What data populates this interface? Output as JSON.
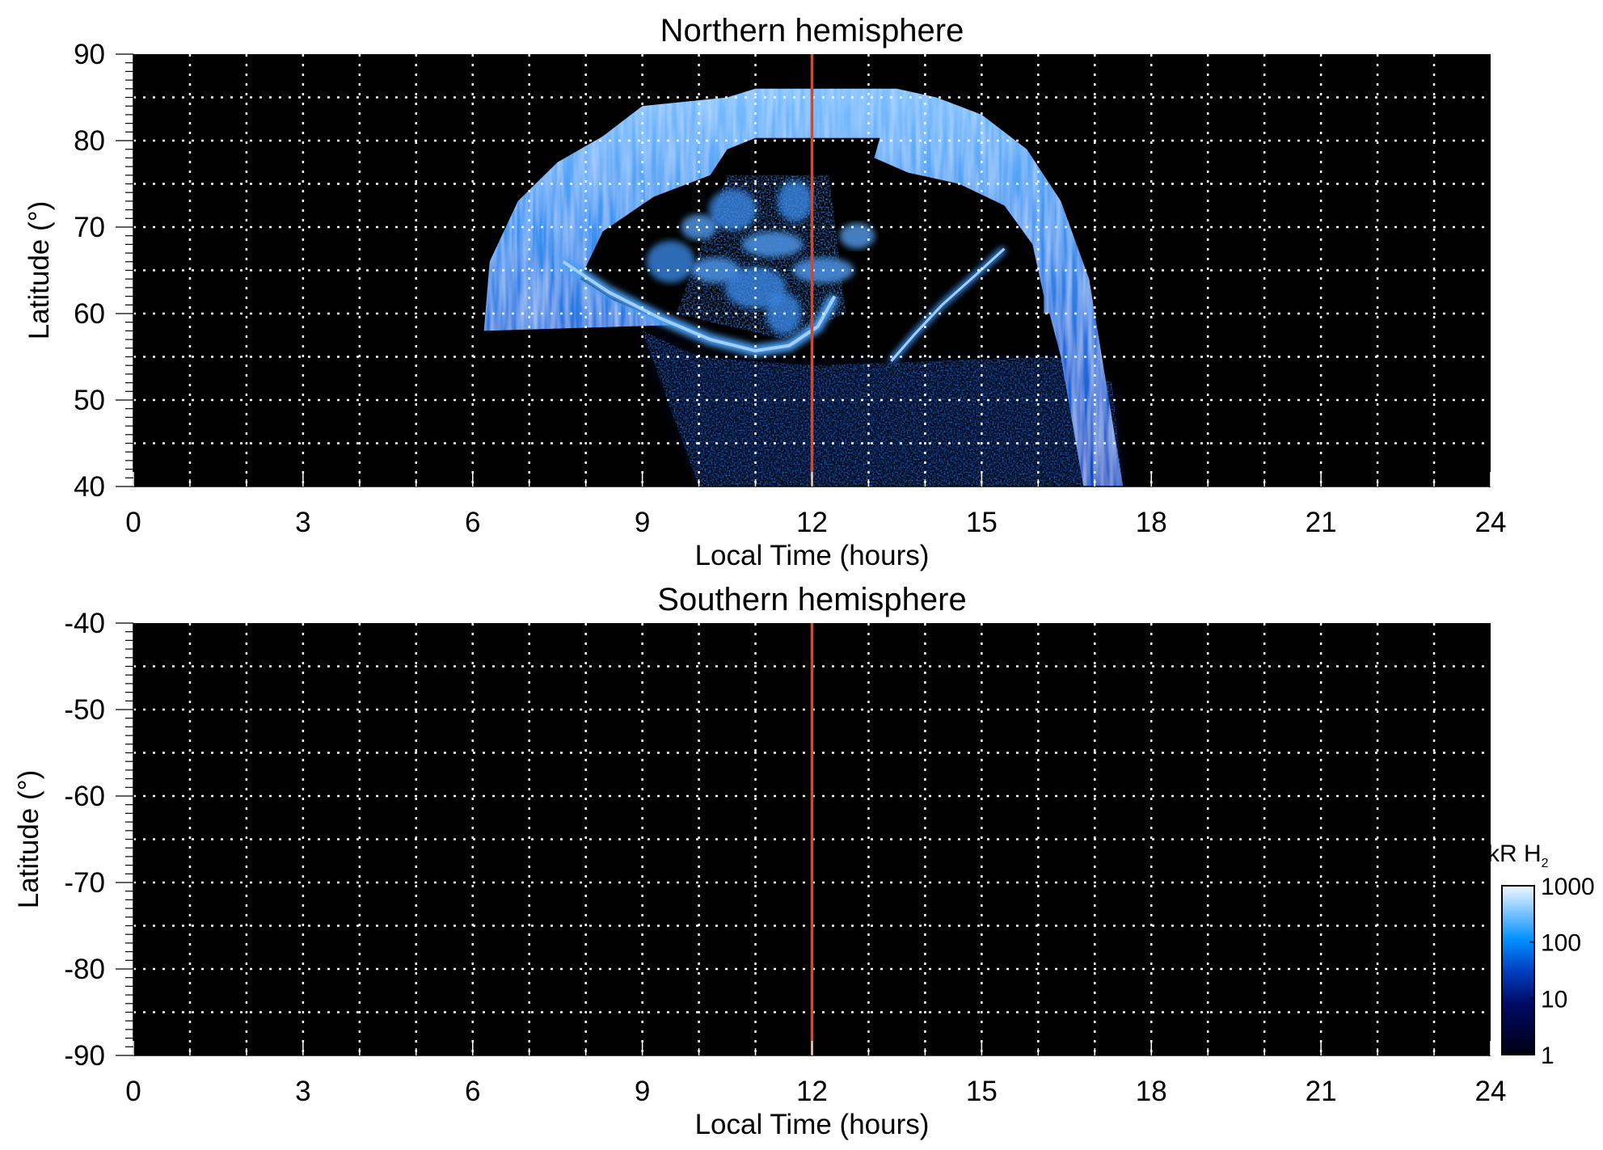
{
  "chart_data": [
    {
      "type": "heatmap",
      "title": "Northern hemisphere",
      "xlabel": "Local Time (hours)",
      "ylabel": "Latitude (°)",
      "xlim": [
        0,
        24
      ],
      "ylim": [
        40,
        90
      ],
      "xticks": [
        0,
        3,
        6,
        9,
        12,
        15,
        18,
        21,
        24
      ],
      "yticks": [
        40,
        50,
        60,
        70,
        80,
        90
      ],
      "grid": true,
      "reference_line_x": 12,
      "emission_regions": {
        "main_oval_outer": [
          [
            6.2,
            58
          ],
          [
            6.3,
            66
          ],
          [
            6.8,
            73
          ],
          [
            7.5,
            77.5
          ],
          [
            8.3,
            80.5
          ],
          [
            9,
            84
          ],
          [
            10.5,
            85
          ],
          [
            11,
            86
          ],
          [
            12,
            86
          ],
          [
            13.5,
            86
          ],
          [
            14.2,
            85
          ],
          [
            15,
            83
          ],
          [
            15.8,
            79
          ],
          [
            16.4,
            73
          ],
          [
            16.9,
            64
          ],
          [
            17.2,
            52
          ],
          [
            17.5,
            40
          ],
          [
            16.8,
            40
          ],
          [
            16.4,
            55
          ],
          [
            16.2,
            60
          ]
        ],
        "dark_hole": [
          [
            7.9,
            64
          ],
          [
            8.3,
            69.5
          ],
          [
            9.2,
            73.5
          ],
          [
            10.2,
            76
          ],
          [
            10.5,
            79
          ],
          [
            11,
            80.3
          ],
          [
            13.2,
            80.3
          ],
          [
            13.1,
            78
          ],
          [
            13.7,
            76.3
          ],
          [
            14.6,
            75
          ],
          [
            15.4,
            72.5
          ],
          [
            15.9,
            68
          ],
          [
            16.1,
            62
          ],
          [
            16.1,
            55.5
          ],
          [
            13.5,
            55.5
          ],
          [
            12.4,
            57.5
          ],
          [
            11.6,
            55.5
          ],
          [
            10.5,
            56.5
          ],
          [
            9.4,
            59
          ],
          [
            8.5,
            61.5
          ]
        ],
        "diffuse_region": [
          [
            9,
            58
          ],
          [
            10,
            55
          ],
          [
            12,
            54
          ],
          [
            16.3,
            55
          ],
          [
            17.3,
            52
          ],
          [
            17.5,
            40
          ],
          [
            10,
            40
          ]
        ],
        "bright_arc_dawn": [
          [
            7.6,
            66
          ],
          [
            8.4,
            62.5
          ],
          [
            9.3,
            59.5
          ],
          [
            10.2,
            57
          ],
          [
            11,
            55.7
          ],
          [
            11.6,
            56.3
          ],
          [
            12.1,
            58.5
          ],
          [
            12.4,
            62
          ]
        ],
        "bright_arc_dusk": [
          [
            13.4,
            54.5
          ],
          [
            13.8,
            57.5
          ],
          [
            14.3,
            61
          ],
          [
            14.9,
            64.5
          ],
          [
            15.4,
            67.5
          ]
        ],
        "patches": [
          [
            10,
            70
          ],
          [
            10.6,
            72
          ],
          [
            11.3,
            68
          ],
          [
            11.7,
            73
          ],
          [
            10.3,
            65
          ],
          [
            11,
            63
          ],
          [
            12.8,
            69
          ],
          [
            9.5,
            66
          ],
          [
            12.2,
            65
          ],
          [
            11.5,
            60
          ]
        ]
      },
      "colorbar": {
        "label_main": "kR H",
        "label_sub": "2",
        "ticks": [
          "1000",
          "100",
          "10",
          "1"
        ],
        "scale": "log",
        "range": [
          1,
          1000
        ]
      }
    },
    {
      "type": "heatmap",
      "title": "Southern hemisphere",
      "xlabel": "Local Time (hours)",
      "ylabel": "Latitude (°)",
      "xlim": [
        0,
        24
      ],
      "ylim": [
        -90,
        -40
      ],
      "xticks": [
        0,
        3,
        6,
        9,
        12,
        15,
        18,
        21,
        24
      ],
      "yticks": [
        -40,
        -50,
        -60,
        -70,
        -80,
        -90
      ],
      "grid": true,
      "reference_line_x": 12
    }
  ],
  "colors": {
    "background": "#000000",
    "reference_line": "#e0441c",
    "grid": "#ffffff",
    "oval": "#2f86ee",
    "oval_bright": "#9fd0ff",
    "diffuse": "#0a3aa8"
  }
}
